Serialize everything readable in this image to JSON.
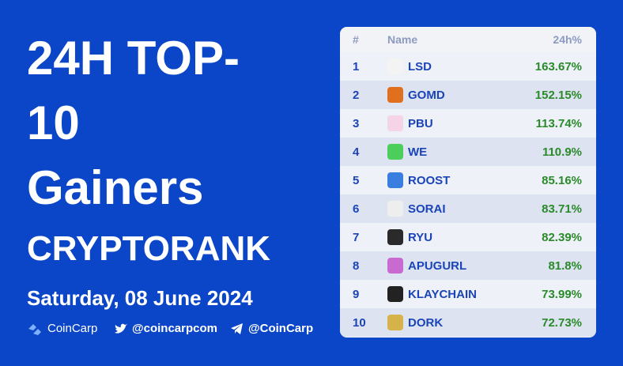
{
  "header": {
    "title_lines": [
      "24H TOP-",
      "10",
      "Gainers"
    ],
    "subtitle": "CRYPTORANK",
    "date": "Saturday, 08 June 2024"
  },
  "footer": {
    "brand": "CoinCarp",
    "twitter": "@coincarpcom",
    "telegram": "@CoinCarp"
  },
  "table": {
    "columns": [
      "#",
      "Name",
      "24h%"
    ],
    "rows": [
      [
        "1",
        "LSD",
        "163.67%"
      ],
      [
        "2",
        "GOMD",
        "152.15%"
      ],
      [
        "3",
        "PBU",
        "113.74%"
      ],
      [
        "4",
        "WE",
        "110.9%"
      ],
      [
        "5",
        "ROOST",
        "85.16%"
      ],
      [
        "6",
        "SORAI",
        "83.71%"
      ],
      [
        "7",
        "RYU",
        "82.39%"
      ],
      [
        "8",
        "APUGURL",
        "81.8%"
      ],
      [
        "9",
        "KLAYCHAIN",
        "73.99%"
      ],
      [
        "10",
        "DORK",
        "72.73%"
      ]
    ]
  }
}
